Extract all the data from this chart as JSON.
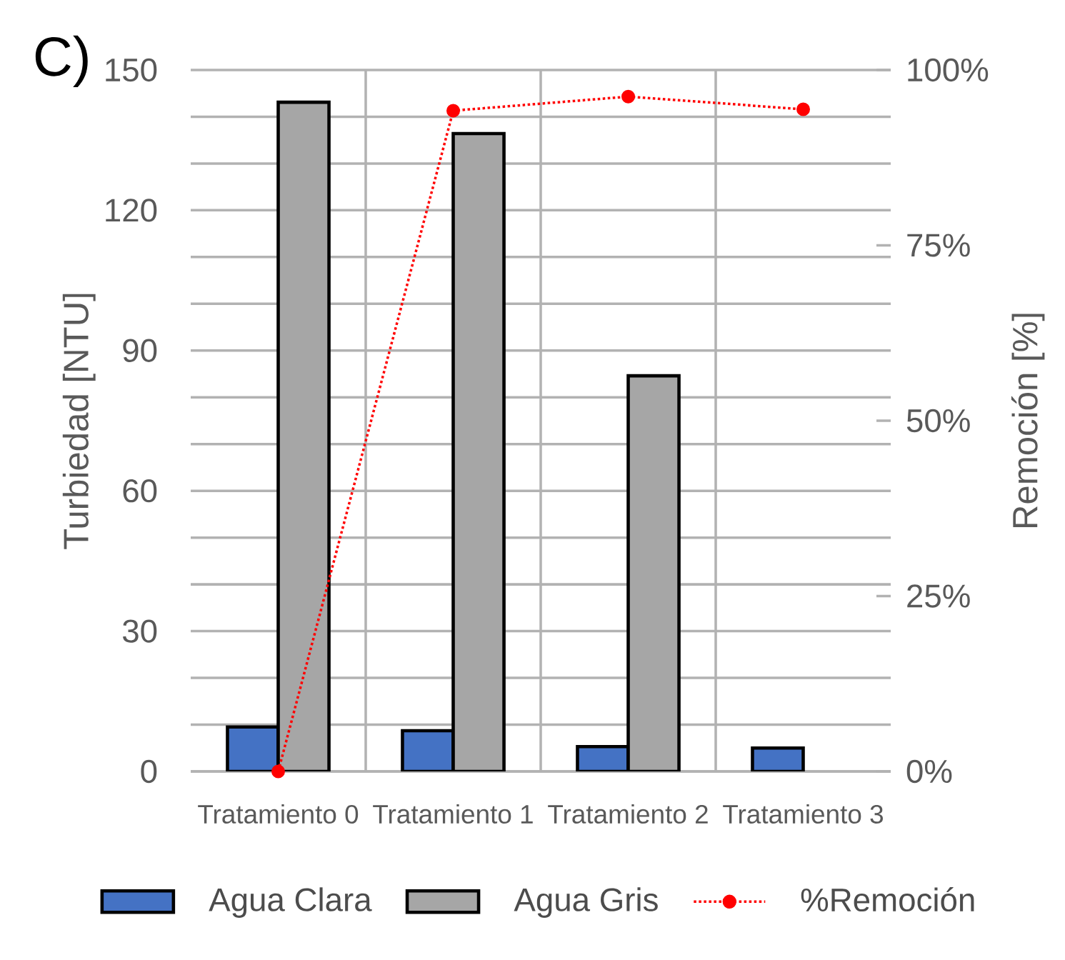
{
  "chart_data": {
    "type": "bar",
    "annotations": [
      "C)"
    ],
    "categories": [
      "Tratamiento 0",
      "Tratamiento 1",
      "Tratamiento 2",
      "Tratamiento 3"
    ],
    "series": [
      {
        "name": "Agua Clara",
        "color": "#4472c4",
        "values": [
          9.5,
          8.7,
          5.3,
          5.0
        ]
      },
      {
        "name": "Agua Gris",
        "color": "#a6a6a6",
        "values": [
          143.1,
          136.4,
          84.6,
          null
        ]
      },
      {
        "name": "%Remoción",
        "type": "line",
        "axis": "y2",
        "color": "#ff0000",
        "marker": "circle",
        "line_style": "dotted",
        "values": [
          0,
          94.2,
          96.2,
          94.4
        ]
      }
    ],
    "ylabel": "Turbiedad [NTU]",
    "y2label": "Remoción [%]",
    "ylim": [
      0,
      150
    ],
    "yticks": [
      0,
      {
        "value": 10,
        "label": null
      },
      {
        "value": 20,
        "label": null
      },
      30,
      {
        "value": 40,
        "label": null
      },
      {
        "value": 50,
        "label": null
      },
      60,
      {
        "value": 70,
        "label": null
      },
      {
        "value": 80,
        "label": null
      },
      90,
      {
        "value": 100,
        "label": null
      },
      {
        "value": 110,
        "label": null
      },
      120,
      {
        "value": 130,
        "label": null
      },
      {
        "value": 140,
        "label": null
      },
      150
    ],
    "y2lim": [
      0,
      100
    ],
    "y2ticks": [
      {
        "value": 0,
        "label": "0%"
      },
      {
        "value": 25,
        "label": "25%"
      },
      {
        "value": 50,
        "label": "50%"
      },
      {
        "value": 75,
        "label": "75%"
      },
      {
        "value": 100,
        "label": "100%"
      }
    ],
    "grid": true,
    "legend": "bottom"
  }
}
